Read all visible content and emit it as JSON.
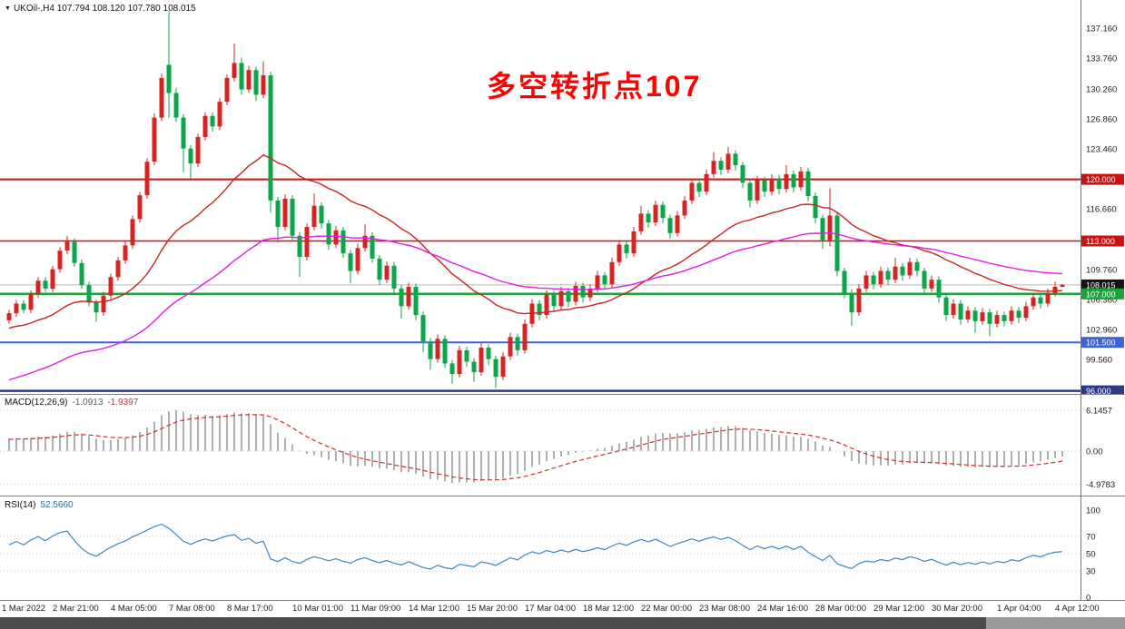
{
  "header": {
    "dropdown_glyph": "▼",
    "symbol": "UKOil-,H4",
    "ohlc": "107.794 108.120 107.780 108.015"
  },
  "chart_data": {
    "type": "candlestick",
    "timeframe": "H4",
    "annotation": {
      "text": "多空转折点107",
      "color": "#FF0000"
    },
    "colors": {
      "bull": "#D62422",
      "bear": "#0AA648",
      "ma_fast": "#CC2222",
      "ma_slow": "#E21EE2",
      "axis_text": "#1C1C1C",
      "separator": "#808080",
      "current_price_line": "#B8B8B8",
      "macd_hist": "#A8A8A8",
      "macd_signal": "#CE2F2F",
      "rsi_line": "#3E86C0"
    },
    "price_axis": {
      "ticks": [
        "137.160",
        "133.760",
        "130.260",
        "126.860",
        "123.460",
        "116.660",
        "109.760",
        "106.360",
        "102.960",
        "99.560"
      ],
      "badges": [
        {
          "label": "120.000",
          "value": 120.0,
          "bg": "#CC1111"
        },
        {
          "label": "113.000",
          "value": 113.0,
          "bg": "#CC1111"
        },
        {
          "label": "108.015",
          "value": 108.015,
          "bg": "#141414"
        },
        {
          "label": "107.000",
          "value": 107.0,
          "bg": "#1EA23C"
        },
        {
          "label": "101.500",
          "value": 101.5,
          "bg": "#3A62D9"
        },
        {
          "label": "96.000",
          "value": 96.0,
          "bg": "#2B3990"
        }
      ]
    },
    "hlines": [
      {
        "value": 120.0,
        "color": "#CC1111",
        "width": 2
      },
      {
        "value": 113.0,
        "color": "#CC1111",
        "width": 1.5
      },
      {
        "value": 107.0,
        "color": "#1EA23C",
        "width": 2.5
      },
      {
        "value": 101.5,
        "color": "#3A62D9",
        "width": 2
      },
      {
        "value": 96.0,
        "color": "#2B3990",
        "width": 2.5
      },
      {
        "value": 108.015,
        "color": "#B8B8B8",
        "width": 1
      }
    ],
    "moving_averages": [
      {
        "period": 28,
        "seed": 103.0,
        "color": "#CC2222"
      },
      {
        "period": 65,
        "seed": 97.0,
        "color": "#E21EE2"
      }
    ],
    "macd": {
      "name": "MACD(12,26,9)",
      "value": "-1.0913",
      "signal_value": "-1.9397",
      "fast": 12,
      "slow": 26,
      "signal": 9,
      "seeds": {
        "ema_fast": 103.5,
        "ema_slow": 101.5,
        "signal": 1.7
      },
      "ticks": [
        "6.1457",
        "0.00",
        "-4.9783"
      ]
    },
    "rsi": {
      "name": "RSI(14)",
      "value": "52.5660",
      "period": 14,
      "seeds": {
        "avg_gain": 0.5,
        "avg_loss": 0.33
      },
      "ticks": [
        "100",
        "70",
        "50",
        "30",
        "0"
      ],
      "levels": [
        70,
        50,
        30
      ]
    },
    "x_labels": [
      {
        "t": "1 Mar 2022",
        "i": 0
      },
      {
        "t": "2 Mar 21:00",
        "i": 7
      },
      {
        "t": "4 Mar 05:00",
        "i": 15
      },
      {
        "t": "7 Mar 08:00",
        "i": 23
      },
      {
        "t": "8 Mar 17:00",
        "i": 31
      },
      {
        "t": "10 Mar 01:00",
        "i": 40
      },
      {
        "t": "11 Mar 09:00",
        "i": 48
      },
      {
        "t": "14 Mar 12:00",
        "i": 56
      },
      {
        "t": "15 Mar 20:00",
        "i": 64
      },
      {
        "t": "17 Mar 04:00",
        "i": 72
      },
      {
        "t": "18 Mar 12:00",
        "i": 80
      },
      {
        "t": "22 Mar 00:00",
        "i": 88
      },
      {
        "t": "23 Mar 08:00",
        "i": 96
      },
      {
        "t": "24 Mar 16:00",
        "i": 104
      },
      {
        "t": "28 Mar 00:00",
        "i": 112
      },
      {
        "t": "29 Mar 12:00",
        "i": 120
      },
      {
        "t": "30 Mar 20:00",
        "i": 128
      },
      {
        "t": "1 Apr 04:00",
        "i": 137
      },
      {
        "t": "4 Apr 12:00",
        "i": 145
      }
    ],
    "candles": [
      [
        104.0,
        105.2,
        103.6,
        104.8
      ],
      [
        104.8,
        106.3,
        104.4,
        105.9
      ],
      [
        105.9,
        106.3,
        104.8,
        105.2
      ],
      [
        105.2,
        107.4,
        104.8,
        107.0
      ],
      [
        107.0,
        108.9,
        106.6,
        108.5
      ],
      [
        108.5,
        108.9,
        107.2,
        107.6
      ],
      [
        107.6,
        110.2,
        107.2,
        109.8
      ],
      [
        109.8,
        112.3,
        109.4,
        111.9
      ],
      [
        111.9,
        113.6,
        111.5,
        112.9
      ],
      [
        112.9,
        113.3,
        110.1,
        110.5
      ],
      [
        110.5,
        110.9,
        107.6,
        108.0
      ],
      [
        108.0,
        108.4,
        105.6,
        106.0
      ],
      [
        106.0,
        106.4,
        103.8,
        104.9
      ],
      [
        104.9,
        107.2,
        104.5,
        106.8
      ],
      [
        106.8,
        109.3,
        106.4,
        108.9
      ],
      [
        108.9,
        111.2,
        108.5,
        110.8
      ],
      [
        110.8,
        112.9,
        110.4,
        112.5
      ],
      [
        112.5,
        115.9,
        112.1,
        115.5
      ],
      [
        115.5,
        118.6,
        115.1,
        118.2
      ],
      [
        118.2,
        122.4,
        117.8,
        122.0
      ],
      [
        122.0,
        127.5,
        121.6,
        127.0
      ],
      [
        127.0,
        132.0,
        126.6,
        131.5
      ],
      [
        133.0,
        139.1,
        127.0,
        129.8
      ],
      [
        129.8,
        130.4,
        126.5,
        127.0
      ],
      [
        127.0,
        127.4,
        120.8,
        123.5
      ],
      [
        123.5,
        123.9,
        120.1,
        121.8
      ],
      [
        121.8,
        125.2,
        121.4,
        124.8
      ],
      [
        124.8,
        127.6,
        124.4,
        127.2
      ],
      [
        127.2,
        127.6,
        125.4,
        126.0
      ],
      [
        126.0,
        129.2,
        125.6,
        128.8
      ],
      [
        128.8,
        131.9,
        128.4,
        131.5
      ],
      [
        131.5,
        135.4,
        131.1,
        133.2
      ],
      [
        133.2,
        133.8,
        129.6,
        130.2
      ],
      [
        130.2,
        132.9,
        129.8,
        132.4
      ],
      [
        132.4,
        132.8,
        128.9,
        129.6
      ],
      [
        129.6,
        133.4,
        129.2,
        131.8
      ],
      [
        131.8,
        132.2,
        116.2,
        117.6
      ],
      [
        117.6,
        118.0,
        112.8,
        114.6
      ],
      [
        114.6,
        118.3,
        114.2,
        117.8
      ],
      [
        117.8,
        118.2,
        113.0,
        113.6
      ],
      [
        113.6,
        114.0,
        108.9,
        111.2
      ],
      [
        111.2,
        115.0,
        110.8,
        114.6
      ],
      [
        114.6,
        118.4,
        114.2,
        117.0
      ],
      [
        117.0,
        117.4,
        114.4,
        115.0
      ],
      [
        115.0,
        115.4,
        112.0,
        112.6
      ],
      [
        112.6,
        114.7,
        112.2,
        114.2
      ],
      [
        114.2,
        114.6,
        111.1,
        111.6
      ],
      [
        111.6,
        112.0,
        108.2,
        109.6
      ],
      [
        109.6,
        112.7,
        109.2,
        112.2
      ],
      [
        112.2,
        114.9,
        111.8,
        113.6
      ],
      [
        113.6,
        114.0,
        110.5,
        111.0
      ],
      [
        111.0,
        111.4,
        108.0,
        108.6
      ],
      [
        108.6,
        110.7,
        108.2,
        110.2
      ],
      [
        110.2,
        110.6,
        107.0,
        107.6
      ],
      [
        107.6,
        108.0,
        104.2,
        105.6
      ],
      [
        105.6,
        108.3,
        105.2,
        107.8
      ],
      [
        107.8,
        108.2,
        104.0,
        104.6
      ],
      [
        104.6,
        105.0,
        100.4,
        101.6
      ],
      [
        101.6,
        102.0,
        98.4,
        99.6
      ],
      [
        99.6,
        102.4,
        99.2,
        101.9
      ],
      [
        101.9,
        102.3,
        98.6,
        99.1
      ],
      [
        99.1,
        99.5,
        96.8,
        97.9
      ],
      [
        97.9,
        101.1,
        97.5,
        100.6
      ],
      [
        100.6,
        101.0,
        98.7,
        99.3
      ],
      [
        99.3,
        99.7,
        97.0,
        98.1
      ],
      [
        98.1,
        101.4,
        97.7,
        100.9
      ],
      [
        100.9,
        101.3,
        98.9,
        99.6
      ],
      [
        99.6,
        100.0,
        96.3,
        97.6
      ],
      [
        97.6,
        100.4,
        97.2,
        99.9
      ],
      [
        99.9,
        102.6,
        99.5,
        102.1
      ],
      [
        102.1,
        102.5,
        100.0,
        100.6
      ],
      [
        100.6,
        104.1,
        100.2,
        103.6
      ],
      [
        103.6,
        106.4,
        103.2,
        105.9
      ],
      [
        105.9,
        106.3,
        104.0,
        104.6
      ],
      [
        104.6,
        107.4,
        104.2,
        106.9
      ],
      [
        106.9,
        107.3,
        105.0,
        105.6
      ],
      [
        105.6,
        107.8,
        105.2,
        107.3
      ],
      [
        107.3,
        107.7,
        105.5,
        106.1
      ],
      [
        106.1,
        108.4,
        105.7,
        107.9
      ],
      [
        107.9,
        108.3,
        106.0,
        106.6
      ],
      [
        106.6,
        108.1,
        106.2,
        107.6
      ],
      [
        107.6,
        109.6,
        107.2,
        109.1
      ],
      [
        109.1,
        109.5,
        107.5,
        108.1
      ],
      [
        108.1,
        111.1,
        107.7,
        110.6
      ],
      [
        110.6,
        113.1,
        110.2,
        112.6
      ],
      [
        112.6,
        113.0,
        111.0,
        111.6
      ],
      [
        111.6,
        114.6,
        111.2,
        114.1
      ],
      [
        114.1,
        117.0,
        113.7,
        116.1
      ],
      [
        116.1,
        116.5,
        114.5,
        115.1
      ],
      [
        115.1,
        117.6,
        114.7,
        117.1
      ],
      [
        117.1,
        117.5,
        115.0,
        115.6
      ],
      [
        115.6,
        116.0,
        113.3,
        113.9
      ],
      [
        113.9,
        116.4,
        113.5,
        115.9
      ],
      [
        115.9,
        118.1,
        115.5,
        117.6
      ],
      [
        117.6,
        120.1,
        117.2,
        119.6
      ],
      [
        119.6,
        120.0,
        118.0,
        118.6
      ],
      [
        118.6,
        121.1,
        118.2,
        120.6
      ],
      [
        120.6,
        123.1,
        120.2,
        122.1
      ],
      [
        122.1,
        122.5,
        120.5,
        121.1
      ],
      [
        121.1,
        123.7,
        120.7,
        122.9
      ],
      [
        122.9,
        123.3,
        121.0,
        121.6
      ],
      [
        121.6,
        122.0,
        119.0,
        119.6
      ],
      [
        119.6,
        120.0,
        116.8,
        117.6
      ],
      [
        117.6,
        120.4,
        117.2,
        119.9
      ],
      [
        119.9,
        120.3,
        118.0,
        118.6
      ],
      [
        118.6,
        120.6,
        118.2,
        120.1
      ],
      [
        120.1,
        120.5,
        118.3,
        118.9
      ],
      [
        118.9,
        121.6,
        118.5,
        120.6
      ],
      [
        120.6,
        121.0,
        118.5,
        119.1
      ],
      [
        119.1,
        121.4,
        118.7,
        120.9
      ],
      [
        120.9,
        121.3,
        117.5,
        118.1
      ],
      [
        118.1,
        118.5,
        115.0,
        115.6
      ],
      [
        115.6,
        116.0,
        112.1,
        113.1
      ],
      [
        113.1,
        119.0,
        112.4,
        115.9
      ],
      [
        115.9,
        116.3,
        109.0,
        109.6
      ],
      [
        109.6,
        110.0,
        106.5,
        107.1
      ],
      [
        107.1,
        107.5,
        103.4,
        104.9
      ],
      [
        104.9,
        108.1,
        104.5,
        107.6
      ],
      [
        107.6,
        109.6,
        107.2,
        109.1
      ],
      [
        109.1,
        109.5,
        107.5,
        108.1
      ],
      [
        108.1,
        110.1,
        107.7,
        109.6
      ],
      [
        109.6,
        110.0,
        108.0,
        108.6
      ],
      [
        108.6,
        111.1,
        108.2,
        110.1
      ],
      [
        110.1,
        110.5,
        108.5,
        109.1
      ],
      [
        109.1,
        111.1,
        108.7,
        110.6
      ],
      [
        110.6,
        111.0,
        109.0,
        109.6
      ],
      [
        109.6,
        110.0,
        107.0,
        107.6
      ],
      [
        107.6,
        109.1,
        107.2,
        108.6
      ],
      [
        108.6,
        109.0,
        106.0,
        106.6
      ],
      [
        106.6,
        107.0,
        103.9,
        104.6
      ],
      [
        104.6,
        106.4,
        104.2,
        105.9
      ],
      [
        105.9,
        106.3,
        103.5,
        104.1
      ],
      [
        104.1,
        105.6,
        103.7,
        105.1
      ],
      [
        105.1,
        105.5,
        102.6,
        103.9
      ],
      [
        103.9,
        105.4,
        103.5,
        104.9
      ],
      [
        104.9,
        105.3,
        102.2,
        103.6
      ],
      [
        103.6,
        105.1,
        103.2,
        104.6
      ],
      [
        104.6,
        105.0,
        103.3,
        103.9
      ],
      [
        103.9,
        105.6,
        103.5,
        105.1
      ],
      [
        105.1,
        105.5,
        103.7,
        104.3
      ],
      [
        104.3,
        106.1,
        103.9,
        105.6
      ],
      [
        105.6,
        107.1,
        105.2,
        106.6
      ],
      [
        106.6,
        107.0,
        105.3,
        105.9
      ],
      [
        105.9,
        107.6,
        105.5,
        107.1
      ],
      [
        107.1,
        108.4,
        106.7,
        107.8
      ],
      [
        107.794,
        108.12,
        107.78,
        108.015
      ]
    ]
  }
}
